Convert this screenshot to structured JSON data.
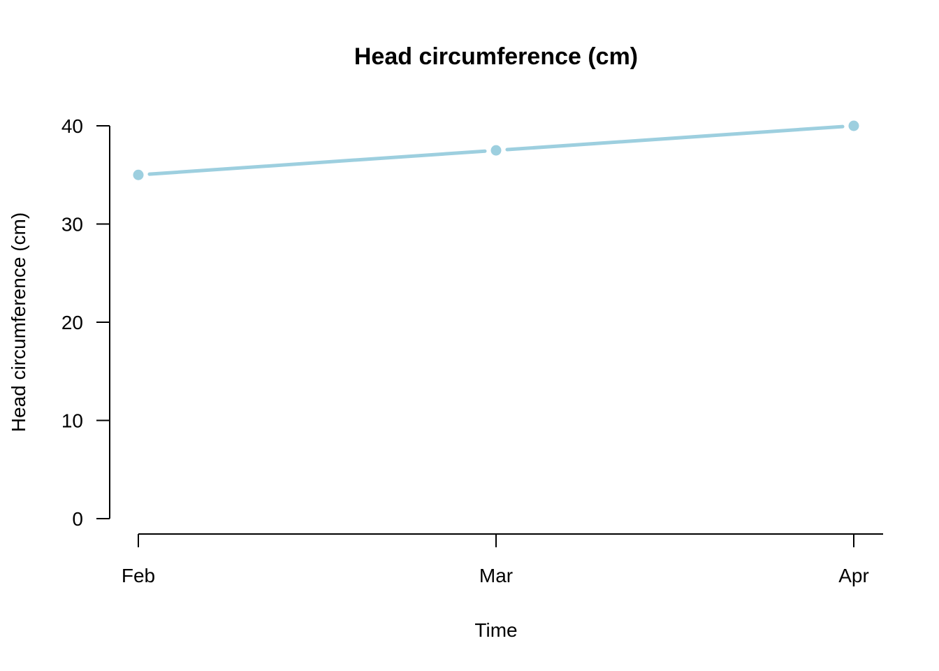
{
  "chart_data": {
    "type": "line",
    "title": "Head circumference (cm)",
    "xlabel": "Time",
    "ylabel": "Head circumference (cm)",
    "categories": [
      "Feb",
      "Mar",
      "Apr"
    ],
    "series": [
      {
        "values": [
          35,
          37.5,
          40
        ],
        "color": "#9dcfdf"
      }
    ],
    "ylim": [
      0,
      40
    ],
    "yticks": [
      "0",
      "10",
      "20",
      "30",
      "40"
    ],
    "grid": false,
    "legend": "none"
  }
}
